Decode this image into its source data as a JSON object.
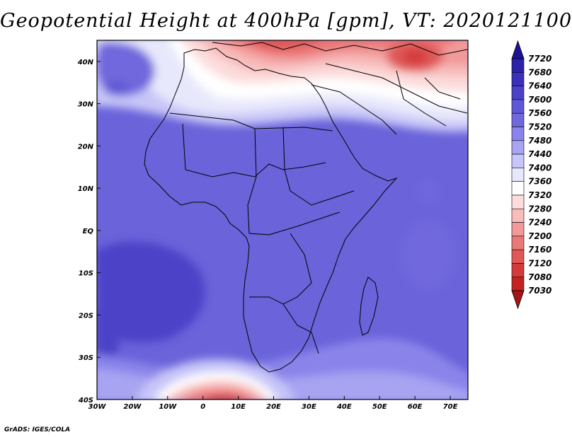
{
  "title": "Geopotential Height at 400hPa [gpm], VT: 2020121100",
  "footer": "GrADS: IGES/COLA",
  "map": {
    "lon_range": [
      -30,
      75
    ],
    "lat_range": [
      -40,
      45
    ],
    "lon_ticks": [
      {
        "value": -30,
        "label": "30W"
      },
      {
        "value": -20,
        "label": "20W"
      },
      {
        "value": -10,
        "label": "10W"
      },
      {
        "value": 0,
        "label": "0"
      },
      {
        "value": 10,
        "label": "10E"
      },
      {
        "value": 20,
        "label": "20E"
      },
      {
        "value": 30,
        "label": "30E"
      },
      {
        "value": 40,
        "label": "40E"
      },
      {
        "value": 50,
        "label": "50E"
      },
      {
        "value": 60,
        "label": "60E"
      },
      {
        "value": 70,
        "label": "70E"
      }
    ],
    "lat_ticks": [
      {
        "value": 40,
        "label": "40N"
      },
      {
        "value": 30,
        "label": "30N"
      },
      {
        "value": 20,
        "label": "20N"
      },
      {
        "value": 10,
        "label": "10N"
      },
      {
        "value": 0,
        "label": "EQ"
      },
      {
        "value": -10,
        "label": "10S"
      },
      {
        "value": -20,
        "label": "20S"
      },
      {
        "value": -30,
        "label": "30S"
      },
      {
        "value": -40,
        "label": "40S"
      }
    ]
  },
  "colorbar": {
    "levels": [
      "7720",
      "7680",
      "7640",
      "7600",
      "7560",
      "7520",
      "7480",
      "7440",
      "7400",
      "7360",
      "7320",
      "7280",
      "7240",
      "7200",
      "7160",
      "7120",
      "7080",
      "7030"
    ],
    "colors": [
      "#1c1496",
      "#2c22aa",
      "#3c30ba",
      "#4b42c8",
      "#5f58d6",
      "#7068dc",
      "#8a84ea",
      "#a8a4f2",
      "#c8c6f8",
      "#e8e8fc",
      "#ffffff",
      "#fcdcdc",
      "#f8bcbc",
      "#f29a9a",
      "#eb7878",
      "#e05858",
      "#d43a3a",
      "#c42222",
      "#a81414"
    ]
  }
}
